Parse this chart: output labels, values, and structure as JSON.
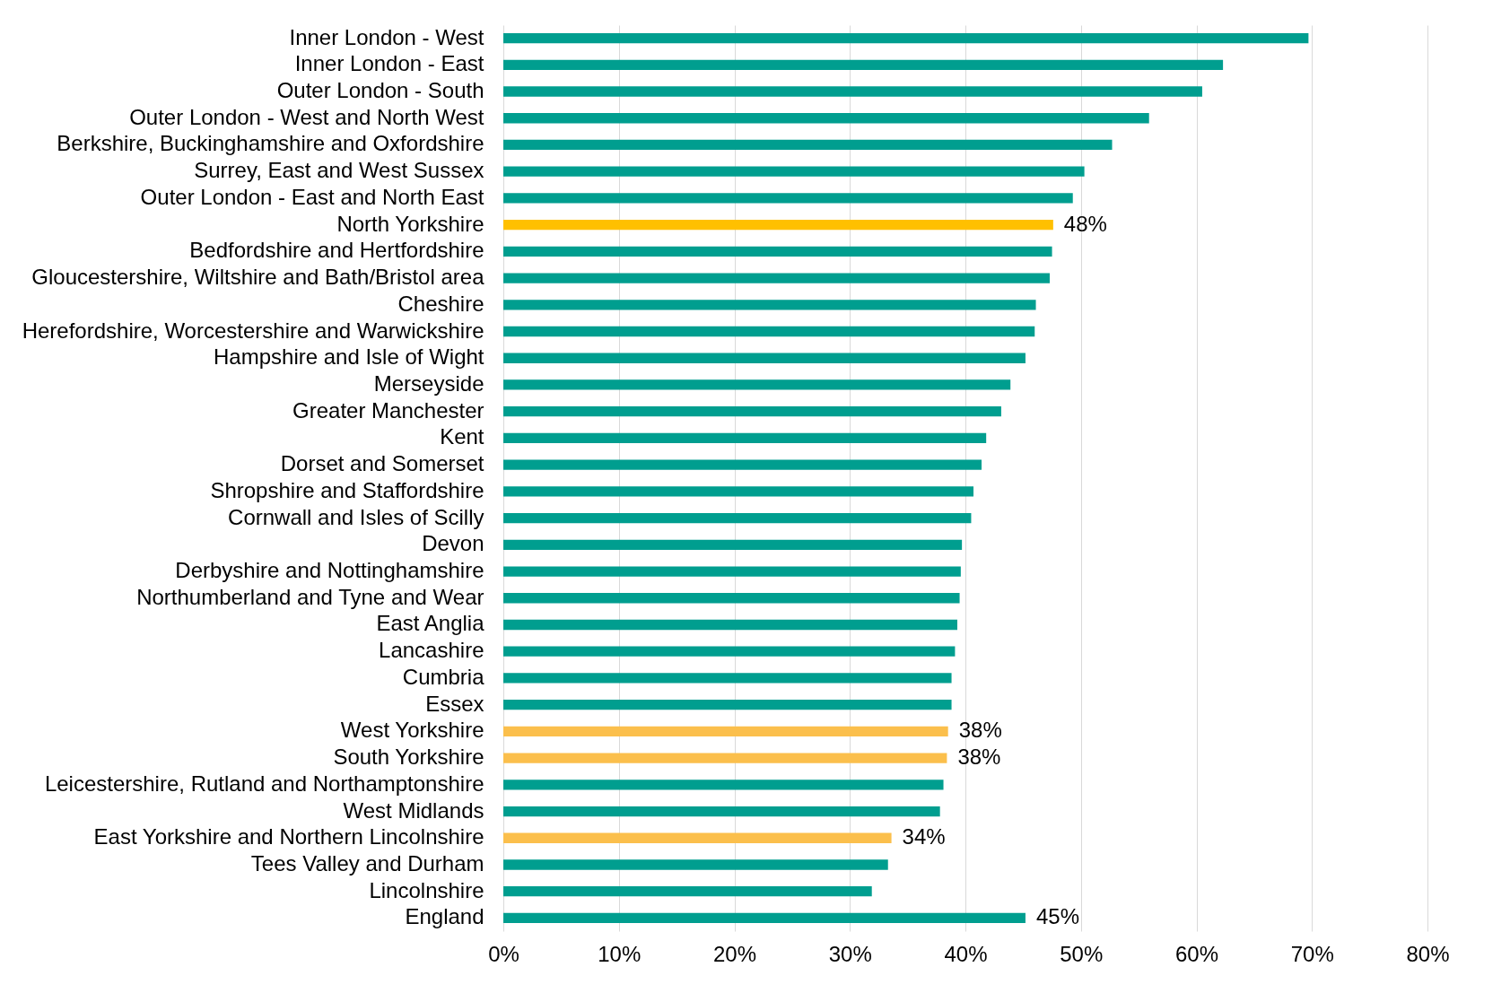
{
  "chart_data": {
    "type": "bar",
    "orientation": "horizontal",
    "categories": [
      "Inner London - West",
      "Inner London - East",
      "Outer London - South",
      "Outer London - West and North West",
      "Berkshire, Buckinghamshire and Oxfordshire",
      "Surrey, East and West Sussex",
      "Outer London - East and North East",
      "North Yorkshire",
      "Bedfordshire and Hertfordshire",
      "Gloucestershire, Wiltshire and Bath/Bristol area",
      "Cheshire",
      "Herefordshire, Worcestershire and Warwickshire",
      "Hampshire and Isle of Wight",
      "Merseyside",
      "Greater Manchester",
      "Kent",
      "Dorset and Somerset",
      "Shropshire and Staffordshire",
      "Cornwall and Isles of Scilly",
      "Devon",
      "Derbyshire and Nottinghamshire",
      "Northumberland and Tyne and Wear",
      "East Anglia",
      "Lancashire",
      "Cumbria",
      "Essex",
      "West Yorkshire",
      "South Yorkshire",
      "Leicestershire, Rutland and Northamptonshire",
      "West Midlands",
      "East Yorkshire and Northern Lincolnshire",
      "Tees Valley and Durham",
      "Lincolnshire",
      "England"
    ],
    "values": [
      69.7,
      62.3,
      60.5,
      55.9,
      52.7,
      50.3,
      49.3,
      47.6,
      47.5,
      47.3,
      46.1,
      46.0,
      45.2,
      43.9,
      43.1,
      41.8,
      41.4,
      40.7,
      40.5,
      39.7,
      39.6,
      39.5,
      39.3,
      39.1,
      38.8,
      38.8,
      38.5,
      38.4,
      38.1,
      37.8,
      33.6,
      33.3,
      31.9,
      45.2
    ],
    "colors": [
      "#009e8f",
      "#009e8f",
      "#009e8f",
      "#009e8f",
      "#009e8f",
      "#009e8f",
      "#009e8f",
      "#ffc000",
      "#009e8f",
      "#009e8f",
      "#009e8f",
      "#009e8f",
      "#009e8f",
      "#009e8f",
      "#009e8f",
      "#009e8f",
      "#009e8f",
      "#009e8f",
      "#009e8f",
      "#009e8f",
      "#009e8f",
      "#009e8f",
      "#009e8f",
      "#009e8f",
      "#009e8f",
      "#009e8f",
      "#fbbf4c",
      "#fbbf4c",
      "#009e8f",
      "#009e8f",
      "#fbbf4c",
      "#009e8f",
      "#009e8f",
      "#009e8f"
    ],
    "value_labels": [
      null,
      null,
      null,
      null,
      null,
      null,
      null,
      "48%",
      null,
      null,
      null,
      null,
      null,
      null,
      null,
      null,
      null,
      null,
      null,
      null,
      null,
      null,
      null,
      null,
      null,
      null,
      "38%",
      "38%",
      null,
      null,
      "34%",
      null,
      null,
      "45%"
    ],
    "xlim": [
      0,
      80
    ],
    "xticks": [
      {
        "value": 0,
        "label": "0%"
      },
      {
        "value": 10,
        "label": "10%"
      },
      {
        "value": 20,
        "label": "20%"
      },
      {
        "value": 30,
        "label": "30%"
      },
      {
        "value": 40,
        "label": "40%"
      },
      {
        "value": 50,
        "label": "50%"
      },
      {
        "value": 60,
        "label": "60%"
      },
      {
        "value": 70,
        "label": "70%"
      },
      {
        "value": 80,
        "label": "80%"
      }
    ],
    "grid": "x"
  }
}
